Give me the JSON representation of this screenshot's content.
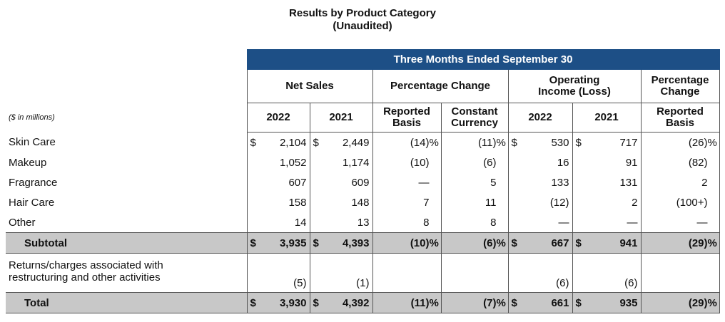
{
  "title": "Results by Product Category",
  "subtitle": "(Unaudited)",
  "banner": "Three Months Ended September 30",
  "groups": {
    "net_sales": "Net Sales",
    "pct_change": "Percentage Change",
    "op_income": "Operating Income (Loss)",
    "pct_change2": "Percentage Change"
  },
  "units": "($ in millions)",
  "columns": [
    "2022",
    "2021",
    "Reported Basis",
    "Constant Currency",
    "2022",
    "2021",
    "Reported Basis"
  ],
  "rows": [
    {
      "label": "Skin Care",
      "ns22": "2,104",
      "ns21": "2,449",
      "rep": "(14)",
      "cc": "(11)",
      "oi22": "530",
      "oi21": "717",
      "oirep": "(26)"
    },
    {
      "label": "Makeup",
      "ns22": "1,052",
      "ns21": "1,174",
      "rep": "(10)",
      "cc": "(6)",
      "oi22": "16",
      "oi21": "91",
      "oirep": "(82)"
    },
    {
      "label": "Fragrance",
      "ns22": "607",
      "ns21": "609",
      "rep": "—",
      "cc": "5",
      "oi22": "133",
      "oi21": "131",
      "oirep": "2"
    },
    {
      "label": "Hair Care",
      "ns22": "158",
      "ns21": "148",
      "rep": "7",
      "cc": "11",
      "oi22": "(12)",
      "oi21": "2",
      "oirep": "(100+)"
    },
    {
      "label": "Other",
      "ns22": "14",
      "ns21": "13",
      "rep": "8",
      "cc": "8",
      "oi22": "—",
      "oi21": "—",
      "oirep": "—"
    }
  ],
  "subtotal": {
    "label": "Subtotal",
    "ns22": "3,935",
    "ns21": "4,393",
    "rep": "(10)",
    "cc": "(6)",
    "oi22": "667",
    "oi21": "941",
    "oirep": "(29)"
  },
  "returns": {
    "label1": "Returns/charges associated with",
    "label2": "restructuring and other activities",
    "ns22": "(5)",
    "ns21": "(1)",
    "oi22": "(6)",
    "oi21": "(6)"
  },
  "total": {
    "label": "Total",
    "ns22": "3,930",
    "ns21": "4,392",
    "rep": "(11)",
    "cc": "(7)",
    "oi22": "661",
    "oi21": "935",
    "oirep": "(29)"
  },
  "symbols": {
    "dollar": "$",
    "percent": "%"
  }
}
